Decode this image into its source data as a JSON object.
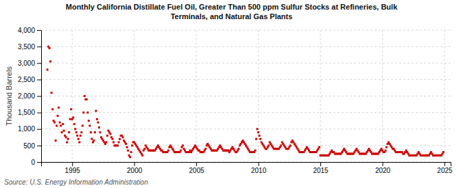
{
  "chart_data": {
    "type": "scatter",
    "title": "Monthly California Distillate Fuel Oil, Greater Than 500 ppm Sulfur Stocks at Refineries, Bulk\nTerminals, and Natural Gas Plants",
    "ylabel": "Thousand Barrels",
    "annotations": [
      "Source: U.S. Energy Information Administration"
    ],
    "color": "#cc0000",
    "marker": "square",
    "grid": true,
    "xlim": [
      1992.5,
      2025.5
    ],
    "xticks": [
      1995,
      2000,
      2005,
      2010,
      2015,
      2020,
      2025
    ],
    "ylim": [
      0,
      4000
    ],
    "yticks": [
      0,
      500,
      {
        "value": 1000,
        "label": "1,000"
      },
      {
        "value": 1500,
        "label": "1,500"
      },
      {
        "value": 2000,
        "label": "2,000"
      },
      {
        "value": 2500,
        "label": "2,500"
      },
      {
        "value": 3000,
        "label": "3,000"
      },
      {
        "value": 3500,
        "label": "3,500"
      },
      {
        "value": 4000,
        "label": "4,000"
      }
    ],
    "x": [
      1993.0,
      1993.083,
      1993.167,
      1993.25,
      1993.333,
      1993.417,
      1993.5,
      1993.583,
      1993.667,
      1993.75,
      1993.833,
      1993.917,
      1994.0,
      1994.083,
      1994.167,
      1994.25,
      1994.333,
      1994.417,
      1994.5,
      1994.583,
      1994.667,
      1994.75,
      1994.833,
      1994.917,
      1995.0,
      1995.083,
      1995.167,
      1995.25,
      1995.333,
      1995.417,
      1995.5,
      1995.583,
      1995.667,
      1995.75,
      1995.833,
      1995.917,
      1996.0,
      1996.083,
      1996.167,
      1996.25,
      1996.333,
      1996.417,
      1996.5,
      1996.583,
      1996.667,
      1996.75,
      1996.833,
      1996.917,
      1997.0,
      1997.083,
      1997.167,
      1997.25,
      1997.333,
      1997.417,
      1997.5,
      1997.583,
      1997.667,
      1997.75,
      1997.833,
      1997.917,
      1998.0,
      1998.083,
      1998.167,
      1998.25,
      1998.333,
      1998.417,
      1998.5,
      1998.583,
      1998.667,
      1998.75,
      1998.833,
      1998.917,
      1999.0,
      1999.083,
      1999.167,
      1999.25,
      1999.333,
      1999.417,
      1999.5,
      1999.583,
      1999.667,
      1999.75,
      1999.833,
      1999.917,
      2000.0,
      2000.083,
      2000.167,
      2000.25,
      2000.333,
      2000.417,
      2000.5,
      2000.583,
      2000.667,
      2000.75,
      2000.833,
      2000.917,
      2001.0,
      2001.083,
      2001.167,
      2001.25,
      2001.333,
      2001.417,
      2001.5,
      2001.583,
      2001.667,
      2001.75,
      2001.833,
      2001.917,
      2002.0,
      2002.083,
      2002.167,
      2002.25,
      2002.333,
      2002.417,
      2002.5,
      2002.583,
      2002.667,
      2002.75,
      2002.833,
      2002.917,
      2003.0,
      2003.083,
      2003.167,
      2003.25,
      2003.333,
      2003.417,
      2003.5,
      2003.583,
      2003.667,
      2003.75,
      2003.833,
      2003.917,
      2004.0,
      2004.083,
      2004.167,
      2004.25,
      2004.333,
      2004.417,
      2004.5,
      2004.583,
      2004.667,
      2004.75,
      2004.833,
      2004.917,
      2005.0,
      2005.083,
      2005.167,
      2005.25,
      2005.333,
      2005.417,
      2005.5,
      2005.583,
      2005.667,
      2005.75,
      2005.833,
      2005.917,
      2006.0,
      2006.083,
      2006.167,
      2006.25,
      2006.333,
      2006.417,
      2006.5,
      2006.583,
      2006.667,
      2006.75,
      2006.833,
      2006.917,
      2007.0,
      2007.083,
      2007.167,
      2007.25,
      2007.333,
      2007.417,
      2007.5,
      2007.583,
      2007.667,
      2007.75,
      2007.833,
      2007.917,
      2008.0,
      2008.083,
      2008.167,
      2008.25,
      2008.333,
      2008.417,
      2008.5,
      2008.583,
      2008.667,
      2008.75,
      2008.833,
      2008.917,
      2009.0,
      2009.083,
      2009.167,
      2009.25,
      2009.333,
      2009.417,
      2009.5,
      2009.583,
      2009.667,
      2009.75,
      2009.833,
      2009.917,
      2010.0,
      2010.083,
      2010.167,
      2010.25,
      2010.333,
      2010.417,
      2010.5,
      2010.583,
      2010.667,
      2010.75,
      2010.833,
      2010.917,
      2011.0,
      2011.083,
      2011.167,
      2011.25,
      2011.333,
      2011.417,
      2011.5,
      2011.583,
      2011.667,
      2011.75,
      2011.833,
      2011.917,
      2012.0,
      2012.083,
      2012.167,
      2012.25,
      2012.333,
      2012.417,
      2012.5,
      2012.583,
      2012.667,
      2012.75,
      2012.833,
      2012.917,
      2013.0,
      2013.083,
      2013.167,
      2013.25,
      2013.333,
      2013.417,
      2013.5,
      2013.583,
      2013.667,
      2013.75,
      2013.833,
      2013.917,
      2014.0,
      2014.083,
      2014.167,
      2014.25,
      2014.333,
      2014.417,
      2014.5,
      2014.583,
      2014.667,
      2014.75,
      2014.833,
      2014.917,
      2015.0,
      2015.083,
      2015.167,
      2015.25,
      2015.333,
      2015.417,
      2015.5,
      2015.583,
      2015.667,
      2015.75,
      2015.833,
      2015.917,
      2016.0,
      2016.083,
      2016.167,
      2016.25,
      2016.333,
      2016.417,
      2016.5,
      2016.583,
      2016.667,
      2016.75,
      2016.833,
      2016.917,
      2017.0,
      2017.083,
      2017.167,
      2017.25,
      2017.333,
      2017.417,
      2017.5,
      2017.583,
      2017.667,
      2017.75,
      2017.833,
      2017.917,
      2018.0,
      2018.083,
      2018.167,
      2018.25,
      2018.333,
      2018.417,
      2018.5,
      2018.583,
      2018.667,
      2018.75,
      2018.833,
      2018.917,
      2019.0,
      2019.083,
      2019.167,
      2019.25,
      2019.333,
      2019.417,
      2019.5,
      2019.583,
      2019.667,
      2019.75,
      2019.833,
      2019.917,
      2020.0,
      2020.083,
      2020.167,
      2020.25,
      2020.333,
      2020.417,
      2020.5,
      2020.583,
      2020.667,
      2020.75,
      2020.833,
      2020.917,
      2021.0,
      2021.083,
      2021.167,
      2021.25,
      2021.333,
      2021.417,
      2021.5,
      2021.583,
      2021.667,
      2021.75,
      2021.833,
      2021.917,
      2022.0,
      2022.083,
      2022.167,
      2022.25,
      2022.333,
      2022.417,
      2022.5,
      2022.583,
      2022.667,
      2022.75,
      2022.833,
      2022.917,
      2023.0,
      2023.083,
      2023.167,
      2023.25,
      2023.333,
      2023.417,
      2023.5,
      2023.583,
      2023.667,
      2023.75,
      2023.833,
      2023.917,
      2024.0,
      2024.083,
      2024.167,
      2024.25,
      2024.333,
      2024.417,
      2024.5,
      2024.583,
      2024.667,
      2024.75,
      2024.833,
      2024.917
    ],
    "values": [
      2800,
      3500,
      3450,
      3050,
      2100,
      1600,
      1250,
      1200,
      650,
      1100,
      1400,
      1650,
      1200,
      1100,
      900,
      1150,
      950,
      800,
      750,
      600,
      700,
      900,
      1300,
      1600,
      1300,
      1350,
      1150,
      1000,
      900,
      800,
      700,
      600,
      800,
      900,
      1100,
      1500,
      2000,
      1900,
      1900,
      1500,
      1250,
      1100,
      900,
      700,
      600,
      650,
      900,
      1550,
      1300,
      1200,
      1050,
      900,
      750,
      700,
      650,
      600,
      550,
      600,
      800,
      950,
      900,
      850,
      750,
      700,
      600,
      500,
      500,
      500,
      500,
      600,
      700,
      800,
      800,
      750,
      650,
      600,
      550,
      450,
      350,
      200,
      150,
      300,
      500,
      600,
      600,
      550,
      500,
      450,
      400,
      350,
      300,
      250,
      200,
      350,
      400,
      500,
      450,
      400,
      350,
      350,
      350,
      350,
      350,
      350,
      350,
      400,
      450,
      500,
      450,
      400,
      350,
      350,
      300,
      300,
      300,
      300,
      300,
      350,
      450,
      500,
      450,
      400,
      350,
      300,
      300,
      300,
      300,
      300,
      300,
      350,
      450,
      500,
      400,
      350,
      300,
      300,
      300,
      300,
      350,
      300,
      350,
      400,
      450,
      500,
      450,
      400,
      350,
      350,
      300,
      300,
      300,
      300,
      350,
      400,
      500,
      550,
      500,
      450,
      400,
      350,
      350,
      350,
      350,
      350,
      350,
      400,
      450,
      500,
      450,
      400,
      350,
      350,
      350,
      350,
      350,
      350,
      300,
      350,
      400,
      450,
      400,
      350,
      300,
      300,
      350,
      400,
      500,
      550,
      600,
      650,
      600,
      550,
      500,
      450,
      400,
      350,
      300,
      300,
      300,
      300,
      300,
      350,
      700,
      1000,
      900,
      800,
      700,
      600,
      550,
      500,
      450,
      400,
      400,
      450,
      500,
      600,
      550,
      500,
      450,
      400,
      400,
      400,
      400,
      400,
      400,
      450,
      500,
      600,
      550,
      500,
      450,
      400,
      400,
      400,
      450,
      500,
      600,
      650,
      600,
      550,
      500,
      450,
      400,
      350,
      300,
      300,
      300,
      300,
      300,
      350,
      400,
      450,
      400,
      350,
      300,
      300,
      300,
      300,
      300,
      300,
      300,
      350,
      400,
      450,
      200,
      200,
      200,
      200,
      200,
      200,
      200,
      200,
      200,
      250,
      300,
      350,
      300,
      300,
      250,
      250,
      250,
      250,
      250,
      250,
      250,
      300,
      350,
      400,
      350,
      300,
      250,
      250,
      250,
      250,
      250,
      250,
      250,
      300,
      350,
      400,
      350,
      300,
      250,
      250,
      250,
      250,
      250,
      250,
      250,
      300,
      350,
      400,
      350,
      300,
      250,
      250,
      250,
      250,
      250,
      250,
      250,
      300,
      350,
      400,
      350,
      300,
      300,
      350,
      450,
      550,
      600,
      550,
      500,
      450,
      400,
      400,
      350,
      300,
      300,
      300,
      300,
      300,
      300,
      300,
      250,
      250,
      300,
      350,
      300,
      250,
      200,
      200,
      200,
      200,
      200,
      200,
      200,
      200,
      250,
      300,
      250,
      200,
      200,
      200,
      200,
      200,
      200,
      200,
      200,
      200,
      250,
      300,
      250,
      200,
      200,
      200,
      200,
      200,
      200,
      200,
      200,
      200,
      250,
      300
    ]
  }
}
